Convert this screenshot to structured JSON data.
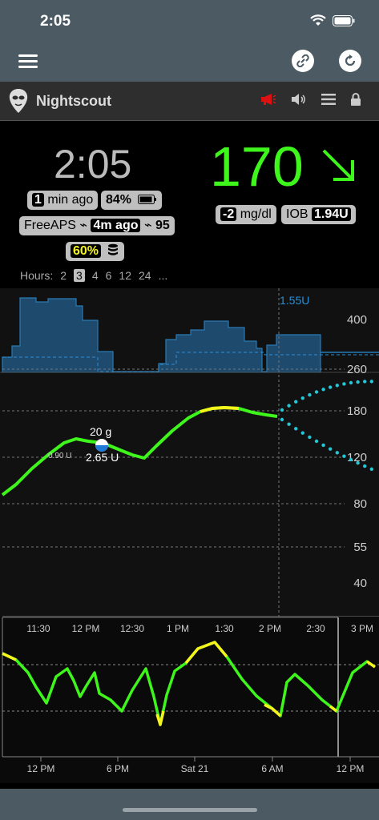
{
  "status_bar": {
    "time": "2:05"
  },
  "header": {
    "app_name": "Nightscout"
  },
  "primary": {
    "clock": "2:05",
    "bg_value": "170",
    "trend_arrow_icon": "arrow-down-right-icon",
    "last_reading_minutes": "1",
    "last_reading_label": "min ago",
    "phone_battery": "84%",
    "loop_name": "FreeAPS",
    "loop_age": "4m ago",
    "loop_prediction": "95",
    "delta": "-2",
    "units": "mg/dl",
    "iob_label": "IOB",
    "iob_value": "1.94U",
    "pump_reservoir": "60%"
  },
  "hours": {
    "label": "Hours:",
    "options": [
      "2",
      "3",
      "4",
      "6",
      "12",
      "24",
      "..."
    ],
    "selected": "3"
  },
  "main_chart": {
    "basal_label": "1.55U",
    "y_ticks": [
      "400",
      "260",
      "180",
      "120",
      "80",
      "55",
      "40"
    ],
    "x_ticks": [
      "11:30",
      "12 PM",
      "12:30",
      "1 PM",
      "1:30",
      "2 PM",
      "2:30",
      "3 PM"
    ],
    "carb_label": "20 g",
    "bolus_label": "2.65 U",
    "small_bolus_label": "0.90 U"
  },
  "nav_chart": {
    "x_ticks": [
      "12 PM",
      "6 PM",
      "Sat 21",
      "6 AM",
      "12 PM"
    ]
  },
  "colors": {
    "in_range": "#3ef51c",
    "high": "#f5f51c",
    "basal": "#1e5b8a",
    "prediction": "#22c7d8",
    "chrome": "#4b5a63"
  },
  "chart_data": {
    "type": "line",
    "ylabel": "",
    "xlabel": "",
    "y_scale": "log",
    "ylim": [
      35,
      450
    ],
    "series": [
      {
        "x": [
          "10:57",
          "11:05",
          "11:15",
          "11:25",
          "11:35",
          "11:45",
          "11:55",
          "12:00",
          "12:10",
          "12:15",
          "12:25",
          "12:35",
          "12:45",
          "12:55",
          "13:05",
          "13:15",
          "13:25",
          "13:35",
          "13:45",
          "13:55",
          "14:05"
        ],
        "values": [
          90,
          98,
          110,
          122,
          134,
          142,
          140,
          143,
          138,
          137,
          132,
          126,
          135,
          150,
          168,
          181,
          186,
          184,
          180,
          175,
          170
        ]
      }
    ]
  }
}
